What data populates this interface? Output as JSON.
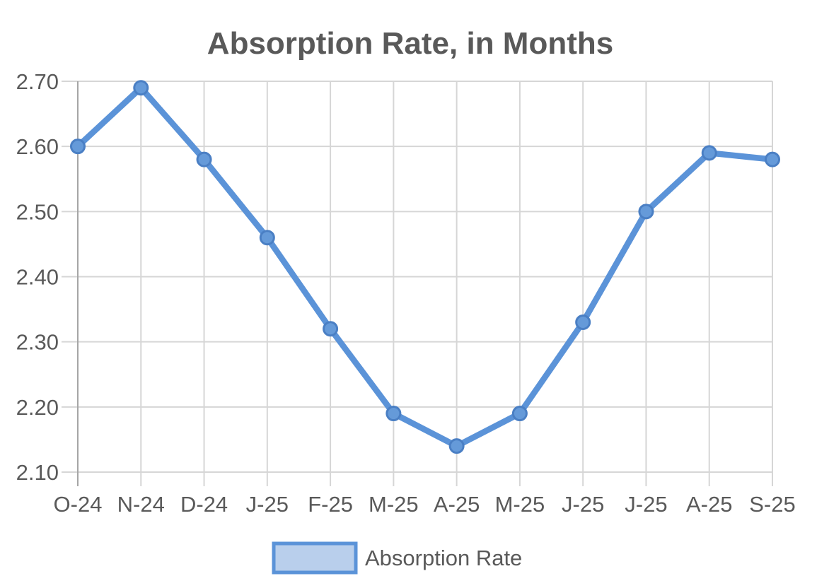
{
  "chart_title": "Absorption Rate, in Months",
  "legend": {
    "label": "Absorption Rate",
    "swatch_fill": "#b9cfec",
    "swatch_border": "#5b93d8"
  },
  "colors": {
    "line": "#5b93d8",
    "marker_fill": "#659ad9",
    "marker_stroke": "#4a7fc4",
    "grid": "#d6d6d6",
    "axis": "#a6a6a6",
    "text": "#595959",
    "title": "#595959",
    "background": "#ffffff"
  },
  "chart_data": {
    "type": "line",
    "title": "Absorption Rate, in Months",
    "categories": [
      "O-24",
      "N-24",
      "D-24",
      "J-25",
      "F-25",
      "M-25",
      "A-25",
      "M-25",
      "J-25",
      "J-25",
      "A-25",
      "S-25"
    ],
    "series": [
      {
        "name": "Absorption Rate",
        "values": [
          2.6,
          2.69,
          2.58,
          2.46,
          2.32,
          2.19,
          2.14,
          2.19,
          2.33,
          2.5,
          2.59,
          2.58
        ]
      }
    ],
    "xlabel": "",
    "ylabel": "",
    "ylim": [
      2.1,
      2.7
    ],
    "ytick_step": 0.1,
    "ytick_labels": [
      "2.10",
      "2.20",
      "2.30",
      "2.40",
      "2.50",
      "2.60",
      "2.70"
    ],
    "grid": true,
    "legend_position": "bottom",
    "marker": "circle"
  }
}
